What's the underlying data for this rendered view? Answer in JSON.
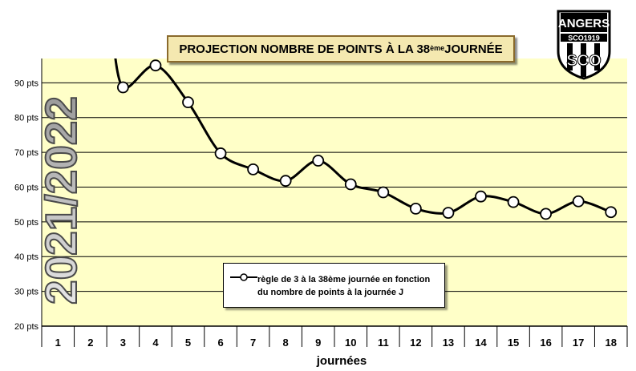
{
  "title": {
    "main": "PROJECTION NOMBRE DE POINTS À LA 38",
    "sup": "ème",
    "end": " JOURNÉE"
  },
  "season_label": "2021/2022",
  "logo": {
    "top_text": "ANGERS",
    "band_text": "SCO1919",
    "letters": "SCO"
  },
  "legend": {
    "line1": "règle de 3 à la 38ème journée en fonction",
    "line2": "du nombre de points à la journée J"
  },
  "chart_data": {
    "type": "line",
    "title": "PROJECTION NOMBRE DE POINTS À LA 38ème JOURNÉE",
    "xlabel": "journées",
    "ylabel": "",
    "x": [
      1,
      2,
      3,
      4,
      5,
      6,
      7,
      8,
      9,
      10,
      11,
      12,
      13,
      14,
      15,
      16,
      17,
      18
    ],
    "categories": [
      "1",
      "2",
      "3",
      "4",
      "5",
      "6",
      "7",
      "8",
      "9",
      "10",
      "11",
      "12",
      "13",
      "14",
      "15",
      "16",
      "17",
      "18"
    ],
    "ylim": [
      20,
      97
    ],
    "yticks": [
      20,
      30,
      40,
      50,
      60,
      70,
      80,
      90
    ],
    "ytick_labels": [
      "20 pts",
      "30 pts",
      "40 pts",
      "50 pts",
      "60 pts",
      "70 pts",
      "80 pts",
      "90 pts"
    ],
    "grid": "horizontal",
    "legend_position": "bottom-center",
    "colors": {
      "plot_bg": "#ffffc8",
      "line": "#000000",
      "marker_fill": "#ffffff"
    },
    "series": [
      {
        "name": "règle de 3 à la 38ème journée en fonction du nombre de points à la journée J",
        "values": [
          null,
          null,
          88.7,
          95,
          84.4,
          69.7,
          65.1,
          61.8,
          67.6,
          60.8,
          58.5,
          53.8,
          52.6,
          57.3,
          55.7,
          52.3,
          55.9,
          52.8
        ],
        "offscale_before": true
      }
    ]
  }
}
